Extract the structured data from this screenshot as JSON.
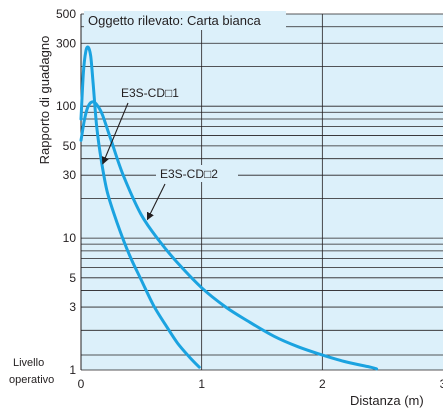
{
  "chart_data": {
    "type": "line",
    "title": "Oggetto rilevato: Carta bianca",
    "xlabel": "Distanza (m)",
    "ylabel": "Rapporto di guadagno",
    "y_scale": "log",
    "xlim": [
      0,
      3
    ],
    "ylim": [
      1,
      500
    ],
    "x_ticks": [
      "0",
      "1",
      "2",
      "3"
    ],
    "y_ticks": [
      {
        "value": 1,
        "label": "1"
      },
      {
        "value": 3,
        "label": "3"
      },
      {
        "value": 5,
        "label": "5"
      },
      {
        "value": 10,
        "label": "10"
      },
      {
        "value": 30,
        "label": "30"
      },
      {
        "value": 50,
        "label": "50"
      },
      {
        "value": 100,
        "label": "100"
      },
      {
        "value": 300,
        "label": "300"
      },
      {
        "value": 500,
        "label": "500"
      }
    ],
    "y_grid": [
      1,
      1.3,
      2,
      3,
      4,
      5,
      6,
      7,
      8,
      9,
      10,
      20,
      30,
      40,
      50,
      60,
      70,
      80,
      90,
      100,
      200,
      300,
      400,
      500
    ],
    "operating_level_label": [
      "Livello",
      "operativo"
    ],
    "series": [
      {
        "name": "E3S-CD□1",
        "color": "#1ba3e0",
        "points": [
          [
            0.0,
            80
          ],
          [
            0.02,
            180
          ],
          [
            0.04,
            260
          ],
          [
            0.06,
            280
          ],
          [
            0.08,
            240
          ],
          [
            0.1,
            150
          ],
          [
            0.13,
            70
          ],
          [
            0.17,
            38
          ],
          [
            0.22,
            22
          ],
          [
            0.3,
            13
          ],
          [
            0.4,
            7.5
          ],
          [
            0.5,
            4.8
          ],
          [
            0.6,
            3.1
          ],
          [
            0.7,
            2.2
          ],
          [
            0.8,
            1.6
          ],
          [
            0.9,
            1.25
          ],
          [
            0.98,
            1.05
          ]
        ]
      },
      {
        "name": "E3S-CD□2",
        "color": "#1ba3e0",
        "points": [
          [
            0.0,
            55
          ],
          [
            0.03,
            80
          ],
          [
            0.06,
            100
          ],
          [
            0.1,
            108
          ],
          [
            0.14,
            100
          ],
          [
            0.18,
            85
          ],
          [
            0.25,
            55
          ],
          [
            0.35,
            30
          ],
          [
            0.5,
            15
          ],
          [
            0.65,
            9.5
          ],
          [
            0.8,
            6.5
          ],
          [
            1.0,
            4.2
          ],
          [
            1.2,
            3.0
          ],
          [
            1.4,
            2.3
          ],
          [
            1.6,
            1.8
          ],
          [
            1.8,
            1.5
          ],
          [
            2.0,
            1.3
          ],
          [
            2.2,
            1.15
          ],
          [
            2.4,
            1.05
          ],
          [
            2.45,
            1.02
          ]
        ]
      }
    ],
    "annotations": [
      {
        "text": "E3S-CD□1",
        "target_series": 0,
        "target_x": 0.18
      },
      {
        "text": "E3S-CD□2",
        "target_series": 1,
        "target_x": 0.55
      }
    ]
  }
}
